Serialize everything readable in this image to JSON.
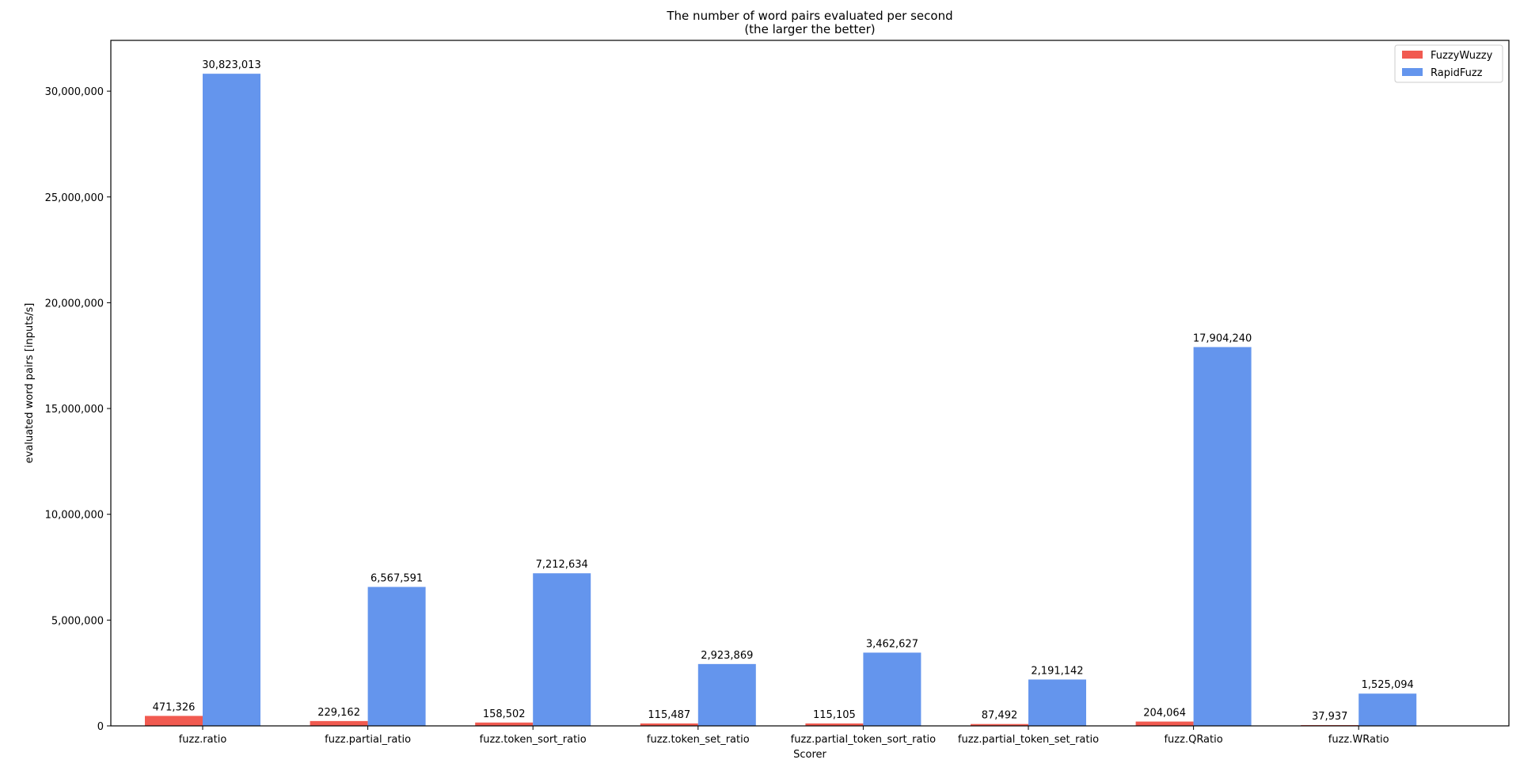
{
  "chart_data": {
    "type": "bar",
    "title": "The number of word pairs evaluated per second",
    "subtitle": "(the larger the better)",
    "xlabel": "Scorer",
    "ylabel": "evaluated word pairs [inputs/s]",
    "categories": [
      "fuzz.ratio",
      "fuzz.partial_ratio",
      "fuzz.token_sort_ratio",
      "fuzz.token_set_ratio",
      "fuzz.partial_token_sort_ratio",
      "fuzz.partial_token_set_ratio",
      "fuzz.QRatio",
      "fuzz.WRatio"
    ],
    "series": [
      {
        "name": "FuzzyWuzzy",
        "color": "#f15a50",
        "values": [
          471326,
          229162,
          158502,
          115487,
          115105,
          87492,
          204064,
          37937
        ],
        "labels": [
          "471,326",
          "229,162",
          "158,502",
          "115,487",
          "115,105",
          "87,492",
          "204,064",
          "37,937"
        ]
      },
      {
        "name": "RapidFuzz",
        "color": "#6495ed",
        "values": [
          30823013,
          6567591,
          7212634,
          2923869,
          3462627,
          2191142,
          17904240,
          1525094
        ],
        "labels": [
          "30,823,013",
          "6,567,591",
          "7,212,634",
          "2,923,869",
          "3,462,627",
          "2,191,142",
          "17,904,240",
          "1,525,094"
        ]
      }
    ],
    "ylim": [
      0,
      32400000
    ],
    "yticks": [
      0,
      5000000,
      10000000,
      15000000,
      20000000,
      25000000,
      30000000
    ],
    "ytick_labels": [
      "0",
      "5,000,000",
      "10,000,000",
      "15,000,000",
      "20,000,000",
      "25,000,000",
      "30,000,000"
    ],
    "grid": false,
    "legend_position": "top-right"
  }
}
